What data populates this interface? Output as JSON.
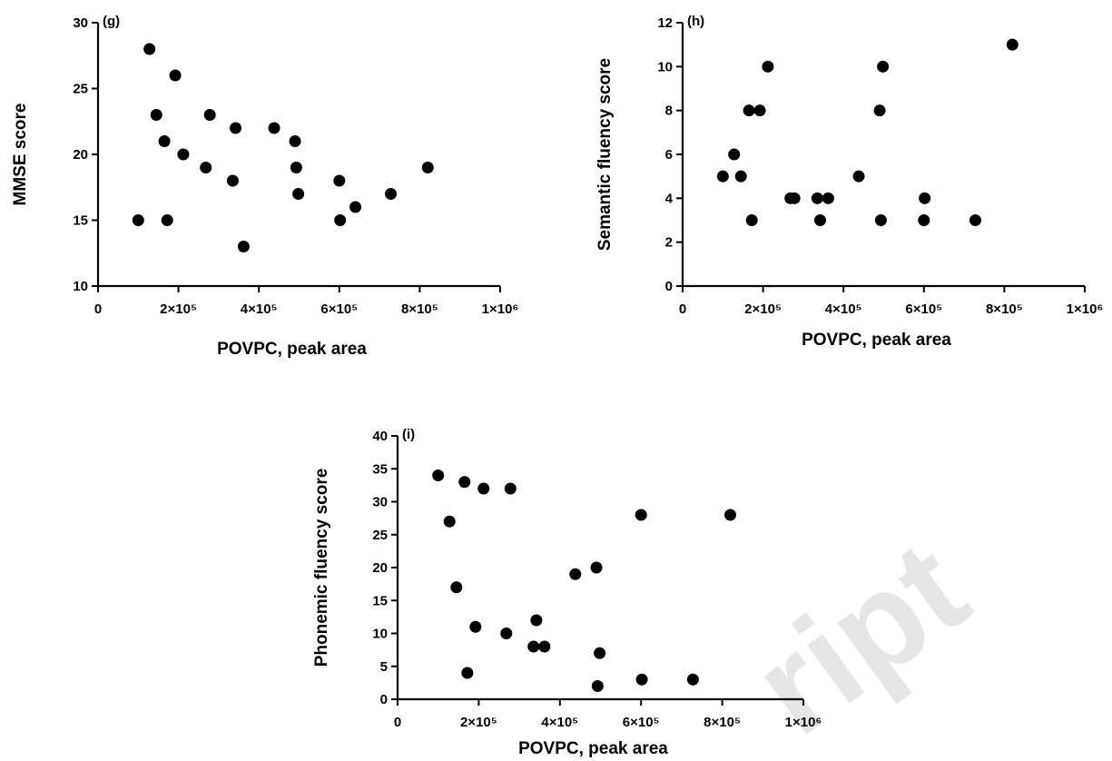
{
  "chart_data": [
    {
      "type": "scatter",
      "panel_label": "(g)",
      "xlabel": "POVPC, peak area",
      "ylabel": "MMSE score",
      "xlim": [
        0,
        1000000
      ],
      "ylim": [
        10,
        30
      ],
      "xticks": [
        0,
        200000,
        400000,
        600000,
        800000,
        1000000
      ],
      "xtick_labels": [
        "0",
        "2×10⁵",
        "4×10⁵",
        "6×10⁵",
        "8×10⁵",
        "1×10⁶"
      ],
      "yticks": [
        10,
        15,
        20,
        25,
        30
      ],
      "ytick_labels": [
        "10",
        "15",
        "20",
        "25",
        "30"
      ],
      "grid": false,
      "points": [
        [
          100000,
          15
        ],
        [
          128000,
          28
        ],
        [
          145000,
          23
        ],
        [
          165000,
          21
        ],
        [
          172000,
          15
        ],
        [
          192000,
          26
        ],
        [
          212000,
          20
        ],
        [
          268000,
          19
        ],
        [
          278000,
          23
        ],
        [
          335000,
          18
        ],
        [
          342000,
          22
        ],
        [
          362000,
          13
        ],
        [
          438000,
          22
        ],
        [
          490000,
          21
        ],
        [
          493000,
          19
        ],
        [
          498000,
          17
        ],
        [
          600000,
          18
        ],
        [
          602000,
          15
        ],
        [
          640000,
          16
        ],
        [
          728000,
          17
        ],
        [
          820000,
          19
        ]
      ]
    },
    {
      "type": "scatter",
      "panel_label": "(h)",
      "xlabel": "POVPC, peak area",
      "ylabel": "Semantic fluency score",
      "xlim": [
        0,
        1000000
      ],
      "ylim": [
        0,
        12
      ],
      "xticks": [
        0,
        200000,
        400000,
        600000,
        800000,
        1000000
      ],
      "xtick_labels": [
        "0",
        "2×10⁵",
        "4×10⁵",
        "6×10⁵",
        "8×10⁵",
        "1×10⁶"
      ],
      "yticks": [
        0,
        2,
        4,
        6,
        8,
        10,
        12
      ],
      "ytick_labels": [
        "0",
        "2",
        "4",
        "6",
        "8",
        "10",
        "12"
      ],
      "grid": false,
      "points": [
        [
          100000,
          5
        ],
        [
          128000,
          6
        ],
        [
          145000,
          5
        ],
        [
          165000,
          8
        ],
        [
          172000,
          3
        ],
        [
          192000,
          8
        ],
        [
          212000,
          10
        ],
        [
          268000,
          4
        ],
        [
          278000,
          4
        ],
        [
          335000,
          4
        ],
        [
          342000,
          3
        ],
        [
          362000,
          4
        ],
        [
          438000,
          5
        ],
        [
          490000,
          8
        ],
        [
          493000,
          3
        ],
        [
          498000,
          10
        ],
        [
          600000,
          3
        ],
        [
          602000,
          4
        ],
        [
          728000,
          3
        ],
        [
          820000,
          11
        ]
      ]
    },
    {
      "type": "scatter",
      "panel_label": "(i)",
      "xlabel": "POVPC, peak area",
      "ylabel": "Phonemic fluency score",
      "xlim": [
        0,
        1000000
      ],
      "ylim": [
        0,
        40
      ],
      "xticks": [
        0,
        200000,
        400000,
        600000,
        800000,
        1000000
      ],
      "xtick_labels": [
        "0",
        "2×10⁵",
        "4×10⁵",
        "6×10⁵",
        "8×10⁵",
        "1×10⁶"
      ],
      "yticks": [
        0,
        5,
        10,
        15,
        20,
        25,
        30,
        35,
        40
      ],
      "ytick_labels": [
        "0",
        "5",
        "10",
        "15",
        "20",
        "25",
        "30",
        "35",
        "40"
      ],
      "grid": false,
      "points": [
        [
          100000,
          34
        ],
        [
          128000,
          27
        ],
        [
          145000,
          17
        ],
        [
          165000,
          33
        ],
        [
          172000,
          4
        ],
        [
          192000,
          11
        ],
        [
          212000,
          32
        ],
        [
          268000,
          10
        ],
        [
          278000,
          32
        ],
        [
          335000,
          8
        ],
        [
          342000,
          12
        ],
        [
          362000,
          8
        ],
        [
          438000,
          19
        ],
        [
          490000,
          20
        ],
        [
          493000,
          2
        ],
        [
          498000,
          7
        ],
        [
          600000,
          28
        ],
        [
          602000,
          3
        ],
        [
          728000,
          3
        ],
        [
          820000,
          28
        ]
      ]
    }
  ],
  "watermark": "ript"
}
